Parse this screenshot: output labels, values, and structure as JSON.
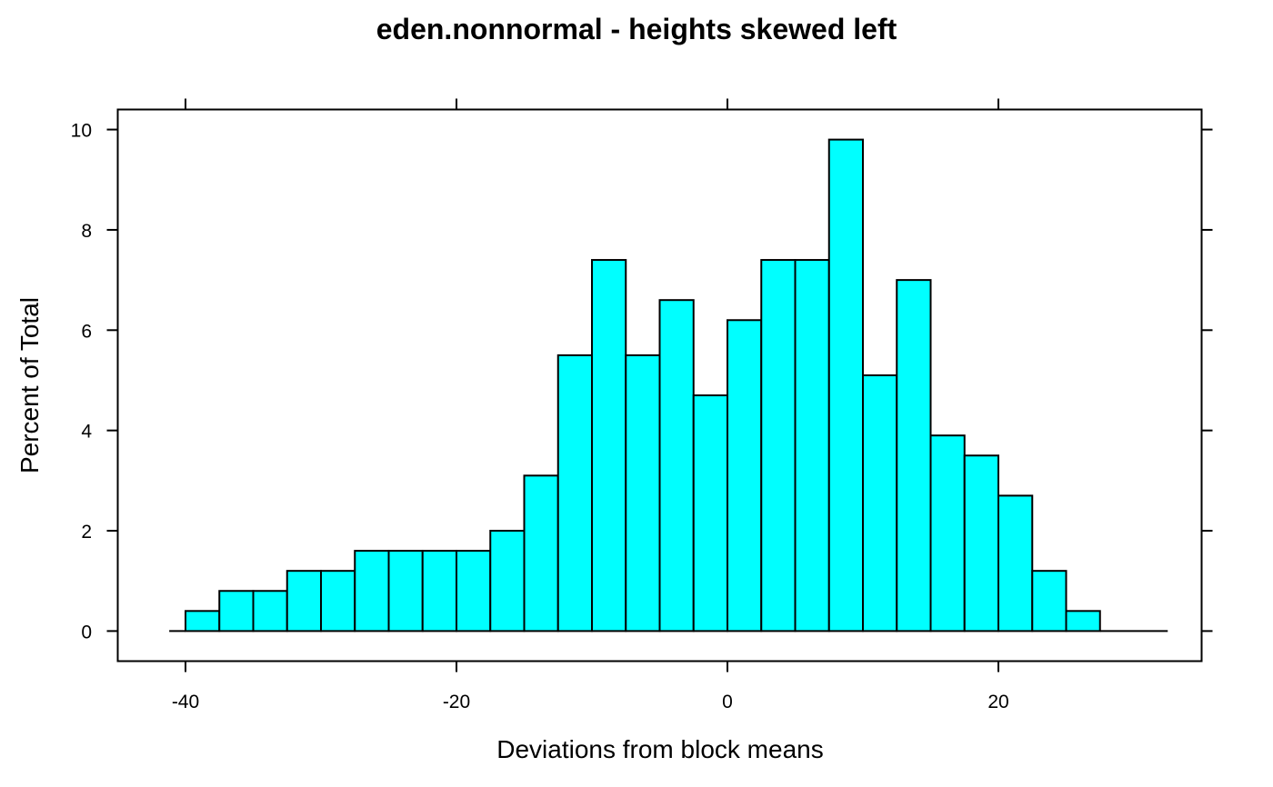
{
  "chart_data": {
    "type": "bar",
    "subtype": "histogram",
    "title": "eden.nonnormal - heights skewed left",
    "xlabel": "Deviations from block means",
    "ylabel": "Percent of Total",
    "xlim": [
      -45,
      35
    ],
    "ylim": [
      -0.6,
      10.4
    ],
    "xticks": [
      -40,
      -20,
      0,
      20
    ],
    "yticks": [
      0,
      2,
      4,
      6,
      8,
      10
    ],
    "bin_width": 2.5,
    "bins": [
      {
        "x0": -40,
        "x1": -37.5,
        "value": 0.4
      },
      {
        "x0": -37.5,
        "x1": -35,
        "value": 0.8
      },
      {
        "x0": -35,
        "x1": -32.5,
        "value": 0.8
      },
      {
        "x0": -32.5,
        "x1": -30,
        "value": 1.2
      },
      {
        "x0": -30,
        "x1": -27.5,
        "value": 1.2
      },
      {
        "x0": -27.5,
        "x1": -25,
        "value": 1.6
      },
      {
        "x0": -25,
        "x1": -22.5,
        "value": 1.6
      },
      {
        "x0": -22.5,
        "x1": -20,
        "value": 1.6
      },
      {
        "x0": -20,
        "x1": -17.5,
        "value": 1.6
      },
      {
        "x0": -17.5,
        "x1": -15,
        "value": 2.0
      },
      {
        "x0": -15,
        "x1": -12.5,
        "value": 3.1
      },
      {
        "x0": -12.5,
        "x1": -10,
        "value": 5.5
      },
      {
        "x0": -10,
        "x1": -7.5,
        "value": 7.4
      },
      {
        "x0": -7.5,
        "x1": -5,
        "value": 5.5
      },
      {
        "x0": -5,
        "x1": -2.5,
        "value": 6.6
      },
      {
        "x0": -2.5,
        "x1": 0,
        "value": 4.7
      },
      {
        "x0": 0,
        "x1": 2.5,
        "value": 6.2
      },
      {
        "x0": 2.5,
        "x1": 5,
        "value": 7.4
      },
      {
        "x0": 5,
        "x1": 7.5,
        "value": 7.4
      },
      {
        "x0": 7.5,
        "x1": 10,
        "value": 9.8
      },
      {
        "x0": 10,
        "x1": 12.5,
        "value": 5.1
      },
      {
        "x0": 12.5,
        "x1": 15,
        "value": 7.0
      },
      {
        "x0": 15,
        "x1": 17.5,
        "value": 3.9
      },
      {
        "x0": 17.5,
        "x1": 20,
        "value": 3.5
      },
      {
        "x0": 20,
        "x1": 22.5,
        "value": 2.7
      },
      {
        "x0": 22.5,
        "x1": 25,
        "value": 1.2
      },
      {
        "x0": 25,
        "x1": 27.5,
        "value": 0.4
      },
      {
        "x0": 27.5,
        "x1": 30,
        "value": 0.0
      },
      {
        "x0": 30,
        "x1": 32.5,
        "value": 0.0
      }
    ],
    "bar_color": "#00FFFF",
    "edge_color": "#000000",
    "grid": false,
    "legend": "none"
  }
}
